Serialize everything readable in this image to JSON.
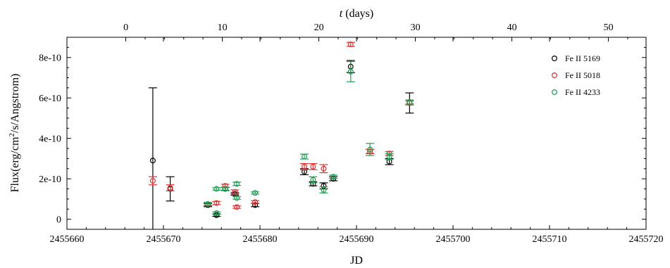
{
  "chart_data": {
    "type": "scatter",
    "title": "",
    "xlabel": "JD",
    "ylabel_parts": [
      "Flux(erg/cm",
      "2",
      "/s/Angstrom)"
    ],
    "x2label": "t",
    "x2label_unit": " (days)",
    "xlim": [
      2455660,
      2455720
    ],
    "ylim": [
      -5e-11,
      9e-10
    ],
    "x_ticks": [
      2455660,
      2455670,
      2455680,
      2455690,
      2455700,
      2455710,
      2455720
    ],
    "x_tick_labels": [
      "2455660",
      "2455670",
      "2455680",
      "2455690",
      "2455700",
      "2455710",
      "2455720"
    ],
    "y_ticks": [
      0,
      2e-10,
      4e-10,
      6e-10,
      8e-10
    ],
    "y_tick_labels": [
      "0",
      "2e-10",
      "4e-10",
      "6e-10",
      "8e-10"
    ],
    "t_offset_jd": 2455666.1,
    "t_ticks": [
      0,
      10,
      20,
      30,
      40,
      50
    ],
    "t_tick_labels": [
      "0",
      "10",
      "20",
      "30",
      "40",
      "50"
    ],
    "grid": false,
    "legend_position": "top-right",
    "series": [
      {
        "name": "Fe II 5169",
        "color": "#000000",
        "points": [
          {
            "x": 2455668.9,
            "y": 2.9e-10,
            "err": 3.6e-10
          },
          {
            "x": 2455670.7,
            "y": 1.5e-10,
            "err": 6e-11
          },
          {
            "x": 2455674.6,
            "y": 7e-11,
            "err": 8e-12
          },
          {
            "x": 2455675.5,
            "y": 2e-11,
            "err": 6e-12
          },
          {
            "x": 2455676.4,
            "y": 1.5e-10,
            "err": 8e-12
          },
          {
            "x": 2455677.4,
            "y": 1.25e-10,
            "err": 6e-12
          },
          {
            "x": 2455679.5,
            "y": 7e-11,
            "err": 8e-12
          },
          {
            "x": 2455684.6,
            "y": 2.35e-10,
            "err": 1.5e-11
          },
          {
            "x": 2455685.5,
            "y": 1.75e-10,
            "err": 1e-11
          },
          {
            "x": 2455686.6,
            "y": 1.65e-10,
            "err": 1.5e-11
          },
          {
            "x": 2455687.6,
            "y": 2e-10,
            "err": 1e-11
          },
          {
            "x": 2455689.4,
            "y": 7.55e-10,
            "err": 3e-11
          },
          {
            "x": 2455691.4,
            "y": 3.35e-10,
            "err": 1e-11
          },
          {
            "x": 2455693.4,
            "y": 2.85e-10,
            "err": 1.5e-11
          },
          {
            "x": 2455695.5,
            "y": 5.75e-10,
            "err": 5e-11
          }
        ]
      },
      {
        "name": "Fe II 5018",
        "color": "#e03030",
        "points": [
          {
            "x": 2455668.9,
            "y": 1.9e-10,
            "err": 2e-11
          },
          {
            "x": 2455670.7,
            "y": 1.55e-10,
            "err": 1.5e-11
          },
          {
            "x": 2455674.6,
            "y": 7.5e-11,
            "err": 8e-12
          },
          {
            "x": 2455675.5,
            "y": 8e-11,
            "err": 8e-12
          },
          {
            "x": 2455676.4,
            "y": 1.65e-10,
            "err": 8e-12
          },
          {
            "x": 2455677.4,
            "y": 1.35e-10,
            "err": 1e-11
          },
          {
            "x": 2455677.6,
            "y": 6e-11,
            "err": 6e-12
          },
          {
            "x": 2455679.5,
            "y": 8.5e-11,
            "err": 6e-12
          },
          {
            "x": 2455684.6,
            "y": 2.6e-10,
            "err": 1.5e-11
          },
          {
            "x": 2455685.5,
            "y": 2.6e-10,
            "err": 1.5e-11
          },
          {
            "x": 2455686.6,
            "y": 2.5e-10,
            "err": 2e-11
          },
          {
            "x": 2455689.4,
            "y": 8.65e-10,
            "err": 1e-11
          },
          {
            "x": 2455691.4,
            "y": 3.35e-10,
            "err": 1e-11
          },
          {
            "x": 2455693.4,
            "y": 3.25e-10,
            "err": 1e-11
          },
          {
            "x": 2455695.5,
            "y": 5.75e-10,
            "err": 1e-11
          }
        ]
      },
      {
        "name": "Fe II 4233",
        "color": "#1aa050",
        "points": [
          {
            "x": 2455674.6,
            "y": 7.5e-11,
            "err": 6e-12
          },
          {
            "x": 2455675.5,
            "y": 1.5e-10,
            "err": 6e-12
          },
          {
            "x": 2455675.5,
            "y": 3e-11,
            "err": 6e-12
          },
          {
            "x": 2455676.4,
            "y": 1.5e-10,
            "err": 6e-12
          },
          {
            "x": 2455677.6,
            "y": 1.75e-10,
            "err": 8e-12
          },
          {
            "x": 2455677.6,
            "y": 1.05e-10,
            "err": 6e-12
          },
          {
            "x": 2455679.5,
            "y": 1.3e-10,
            "err": 5e-12
          },
          {
            "x": 2455684.6,
            "y": 3.1e-10,
            "err": 1.2e-11
          },
          {
            "x": 2455685.5,
            "y": 1.95e-10,
            "err": 1.5e-11
          },
          {
            "x": 2455686.6,
            "y": 1.45e-10,
            "err": 1.5e-11
          },
          {
            "x": 2455687.6,
            "y": 2.1e-10,
            "err": 8e-12
          },
          {
            "x": 2455689.4,
            "y": 7.3e-10,
            "err": 5e-11
          },
          {
            "x": 2455691.4,
            "y": 3.45e-10,
            "err": 3e-11
          },
          {
            "x": 2455693.4,
            "y": 3.1e-10,
            "err": 1.5e-11
          },
          {
            "x": 2455695.5,
            "y": 5.8e-10,
            "err": 1e-11
          }
        ]
      }
    ]
  }
}
